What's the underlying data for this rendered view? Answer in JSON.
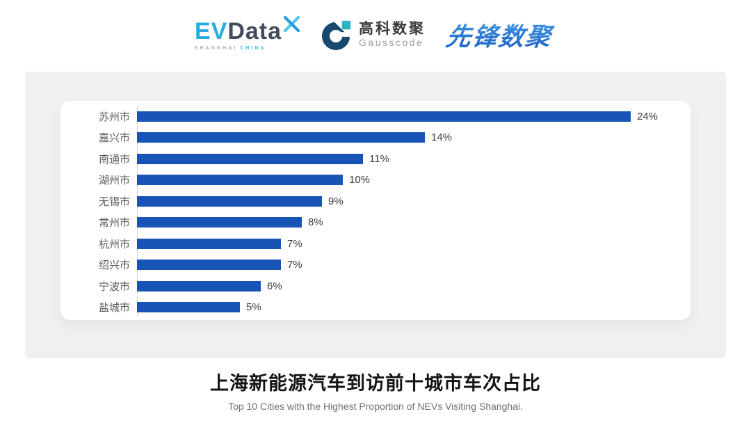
{
  "header": {
    "evdata_logo": {
      "ev": "EV",
      "data": "Data",
      "pinwheel_icon": "x-pinwheel",
      "tagline_left": "SHANGHAI",
      "tagline_right": "CHINA"
    },
    "gausscode_logo": {
      "mark_icon": "g-circle-mark",
      "name_cn": "高科数聚",
      "name_en": "Gausscode"
    },
    "pioneer_logo": {
      "text": "先锋数聚"
    }
  },
  "chart_data": {
    "type": "bar",
    "orientation": "horizontal",
    "title": "上海新能源汽车到访前十城市车次占比",
    "subtitle": "Top 10 Cities with the Highest Proportion of  NEVs Visiting Shanghai.",
    "categories": [
      "苏州市",
      "嘉兴市",
      "南通市",
      "湖州市",
      "无锡市",
      "常州市",
      "杭州市",
      "绍兴市",
      "宁波市",
      "盐城市"
    ],
    "values": [
      24,
      14,
      11,
      10,
      9,
      8,
      7,
      7,
      6,
      5
    ],
    "value_labels": [
      "24%",
      "14%",
      "11%",
      "10%",
      "9%",
      "8%",
      "7%",
      "7%",
      "6%",
      "5%"
    ],
    "xlim": [
      0,
      24
    ],
    "grid": false,
    "legend": false,
    "bar_color": "#1853B6",
    "axis_line_color": "#D9D9D9"
  },
  "footer": {
    "title": "上海新能源汽车到访前十城市车次占比",
    "subtitle": "Top 10 Cities with the Highest Proportion of  NEVs Visiting Shanghai."
  },
  "colors": {
    "page_bg": "#FFFFFF",
    "panel_bg": "#F0F0F1",
    "card_bg": "#FFFFFF",
    "bar": "#1853B6",
    "category_text": "#595959",
    "value_text": "#3D3D3D"
  }
}
